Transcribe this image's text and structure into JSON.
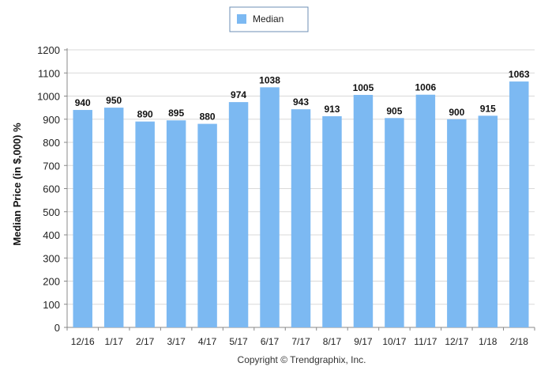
{
  "chart_data": {
    "type": "bar",
    "title": "",
    "xlabel": "",
    "ylabel": "Median Price (in $,000) %",
    "categories": [
      "12/16",
      "1/17",
      "2/17",
      "3/17",
      "4/17",
      "5/17",
      "6/17",
      "7/17",
      "8/17",
      "9/17",
      "10/17",
      "11/17",
      "12/17",
      "1/18",
      "2/18"
    ],
    "series": [
      {
        "name": "Median",
        "values": [
          940,
          950,
          890,
          895,
          880,
          974,
          1038,
          943,
          913,
          1005,
          905,
          1006,
          900,
          915,
          1063
        ],
        "color": "#7cb9f2"
      }
    ],
    "ylim": [
      0,
      1200
    ],
    "yticks": [
      0,
      100,
      200,
      300,
      400,
      500,
      600,
      700,
      800,
      900,
      1000,
      1100,
      1200
    ],
    "grid": true,
    "legend_position": "top-center",
    "data_labels": true
  },
  "footer": {
    "copyright": "Copyright © Trendgraphix, Inc."
  }
}
